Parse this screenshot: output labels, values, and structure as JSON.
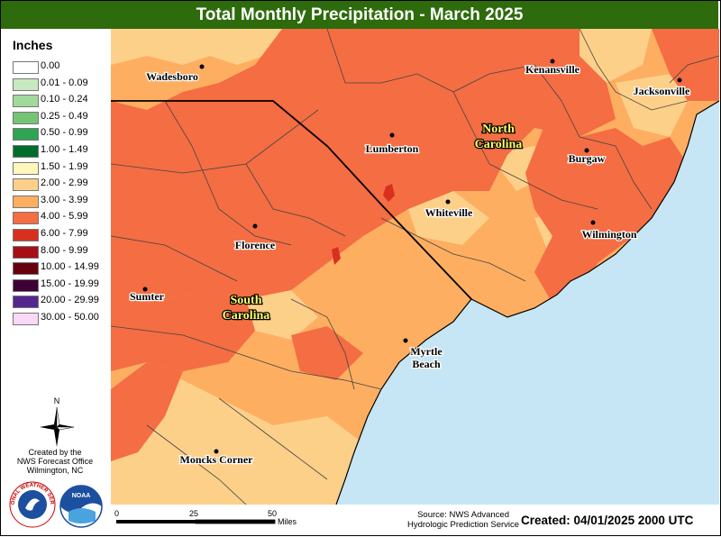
{
  "title": "Total Monthly Precipitation - March 2025",
  "legend": {
    "title": "Inches",
    "items": [
      {
        "label": "0.00",
        "color": "#ffffff"
      },
      {
        "label": "0.01 - 0.09",
        "color": "#c7e9c0"
      },
      {
        "label": "0.10 - 0.24",
        "color": "#a1d99b"
      },
      {
        "label": "0.25 - 0.49",
        "color": "#74c476"
      },
      {
        "label": "0.50 - 0.99",
        "color": "#31a354"
      },
      {
        "label": "1.00 - 1.49",
        "color": "#006d2c"
      },
      {
        "label": "1.50 - 1.99",
        "color": "#fff7bc"
      },
      {
        "label": "2.00 - 2.99",
        "color": "#fdd08a"
      },
      {
        "label": "3.00 - 3.99",
        "color": "#fdae61"
      },
      {
        "label": "4.00 - 5.99",
        "color": "#f46d43"
      },
      {
        "label": "6.00 - 7.99",
        "color": "#d7301f"
      },
      {
        "label": "8.00 - 9.99",
        "color": "#a50f15"
      },
      {
        "label": "10.00 - 14.99",
        "color": "#67000d"
      },
      {
        "label": "15.00 - 19.99",
        "color": "#3f0036"
      },
      {
        "label": "20.00 - 29.99",
        "color": "#54278f"
      },
      {
        "label": "30.00 - 50.00",
        "color": "#fbd8f5"
      }
    ]
  },
  "cities": [
    {
      "name": "Wadesboro"
    },
    {
      "name": "Kenansville"
    },
    {
      "name": "Jacksonville"
    },
    {
      "name": "Lumberton"
    },
    {
      "name": "Burgaw"
    },
    {
      "name": "Whiteville"
    },
    {
      "name": "Wilmington"
    },
    {
      "name": "Florence"
    },
    {
      "name": "Sumter"
    },
    {
      "name": "Myrtle Beach",
      "lines": [
        "Myrtle",
        "Beach"
      ]
    },
    {
      "name": "Moncks Corner"
    }
  ],
  "states": {
    "nc": [
      "North",
      "Carolina"
    ],
    "sc": [
      "South",
      "Carolina"
    ]
  },
  "compass_label": "N",
  "created_by": [
    "Created by the",
    "NWS Forecast Office",
    "Wilmington, NC"
  ],
  "logos": {
    "nws": "NATIONAL WEATHER SERVICE",
    "noaa": "NOAA"
  },
  "scale": {
    "ticks": [
      "0",
      "25",
      "50"
    ],
    "unit": "Miles"
  },
  "source": [
    "Source: NWS Advanced",
    "Hydrologic Prediction Service"
  ],
  "created": "Created: 04/01/2025 2000 UTC",
  "colors": {
    "title_bar": "#2e6b0c",
    "ocean": "#c6e6f5"
  }
}
